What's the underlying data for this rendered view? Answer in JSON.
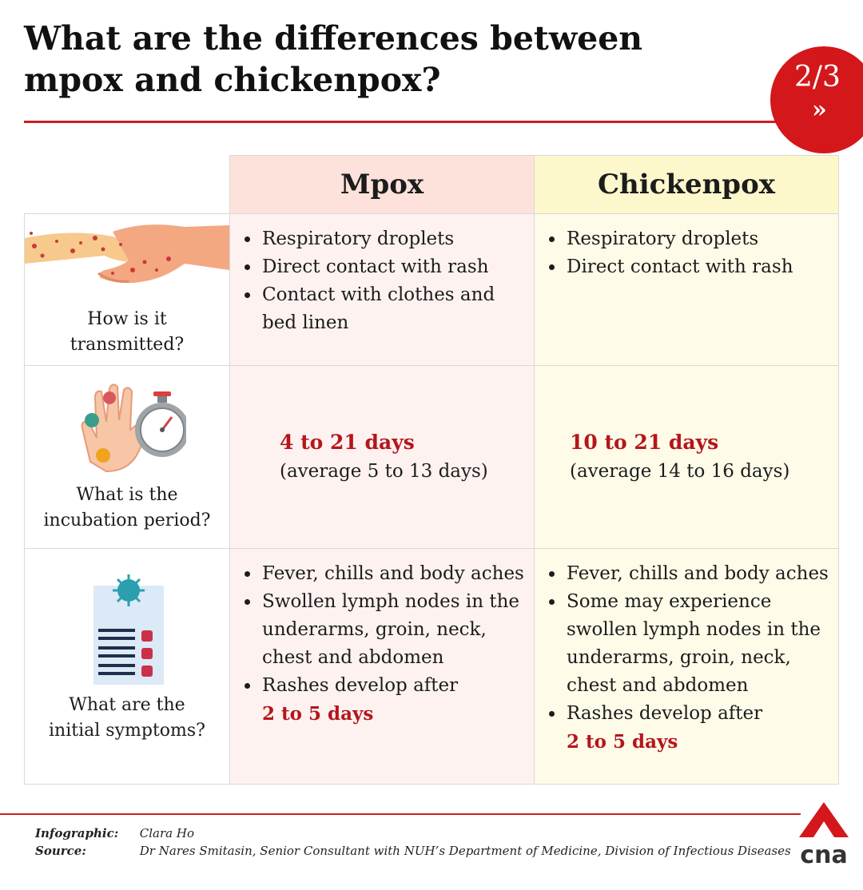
{
  "title": "What are the differences between mpox and chickenpox?",
  "page_indicator": {
    "text": "2/3",
    "next": "»"
  },
  "columns": {
    "mpox": "Mpox",
    "chickenpox": "Chickenpox"
  },
  "rows": [
    {
      "question_lines": [
        "How is it",
        "transmitted?"
      ],
      "icon": "handshake-rash-icon",
      "mpox": [
        "Respiratory droplets",
        "Direct contact with rash",
        "Contact with clothes and bed linen"
      ],
      "chickenpox": [
        "Respiratory droplets",
        "Direct contact with rash"
      ]
    },
    {
      "question_lines": [
        "What is the",
        "incubation period?"
      ],
      "icon": "hand-virus-stopwatch-icon",
      "mpox": {
        "range": "4 to 21 days",
        "average": "(average 5 to 13 days)"
      },
      "chickenpox": {
        "range": "10 to 21 days",
        "average": "(average 14 to 16 days)"
      }
    },
    {
      "question_lines": [
        "What are the",
        "initial symptoms?"
      ],
      "icon": "symptom-checklist-icon",
      "mpox": [
        "Fever, chills and body aches",
        "Swollen lymph nodes in the underarms, groin, neck, chest and abdomen",
        "Rashes develop after"
      ],
      "mpox_rash_days": "2 to 5 days",
      "chickenpox": [
        "Fever, chills and body aches",
        "Some may experience swollen lymph nodes in the underarms, groin, neck, chest and abdomen",
        "Rashes develop after"
      ],
      "chickenpox_rash_days": "2 to 5 days"
    }
  ],
  "credits": {
    "infographic_label": "Infographic:",
    "infographic_value": "Clara Ho",
    "source_label": "Source:",
    "source_value": "Dr Nares Smitasin, Senior Consultant with NUH’s Department of Medicine, Division of Infectious Diseases"
  },
  "logo_text": "cna",
  "colors": {
    "accent_red": "#c8201e",
    "mpox_header": "#fde2dc",
    "chickenpox_header": "#fdf7cc",
    "highlight_text": "#b4161c"
  }
}
